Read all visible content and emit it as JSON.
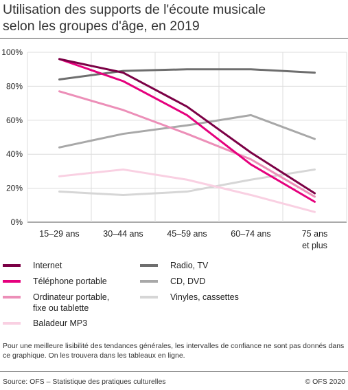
{
  "header": {
    "title_line1": "Utilisation des supports de l'écoute musicale",
    "title_line2": "selon les groupes d'âge, en 2019"
  },
  "chart_data": {
    "type": "line",
    "categories": [
      "15–29 ans",
      "30–44 ans",
      "45–59 ans",
      "60–74 ans",
      "75 ans et plus"
    ],
    "ylim": [
      0,
      100
    ],
    "yticks": [
      "0%",
      "20%",
      "40%",
      "60%",
      "80%",
      "100%"
    ],
    "grid": true,
    "legend_position": "bottom",
    "series": [
      {
        "name": "Internet",
        "color": "#7b0045",
        "values": [
          96,
          88,
          68,
          41,
          17
        ]
      },
      {
        "name": "Téléphone portable",
        "color": "#e5007d",
        "values": [
          96,
          83,
          63,
          34,
          12
        ]
      },
      {
        "name": "Ordinateur portable, fixe ou tablette",
        "color": "#ec8fb8",
        "values": [
          77,
          66,
          52,
          37,
          15
        ]
      },
      {
        "name": "Baladeur MP3",
        "color": "#f9d0e2",
        "values": [
          27,
          31,
          25,
          16,
          6
        ]
      },
      {
        "name": "Radio, TV",
        "color": "#6e6e6e",
        "values": [
          84,
          89,
          90,
          90,
          88
        ]
      },
      {
        "name": "CD, DVD",
        "color": "#a8a8a8",
        "values": [
          44,
          52,
          57,
          63,
          49
        ]
      },
      {
        "name": "Vinyles, cassettes",
        "color": "#d6d6d6",
        "values": [
          18,
          16,
          18,
          25,
          31
        ]
      }
    ]
  },
  "legend": {
    "items": [
      {
        "label": "Internet"
      },
      {
        "label": "Téléphone portable"
      },
      {
        "label": "Ordinateur portable, fixe ou tablette"
      },
      {
        "label": "Baladeur MP3"
      },
      {
        "label": "Radio, TV"
      },
      {
        "label": "CD, DVD"
      },
      {
        "label": "Vinyles, cassettes"
      }
    ]
  },
  "note": "Pour une meilleure lisibilité des tendances générales, les intervalles de confiance ne sont pas donnés dans ce graphique. On les trouvera dans les tableaux en ligne.",
  "footer": {
    "source": "Source: OFS – Statistique des pratiques culturelles",
    "copyright": "© OFS 2020"
  }
}
